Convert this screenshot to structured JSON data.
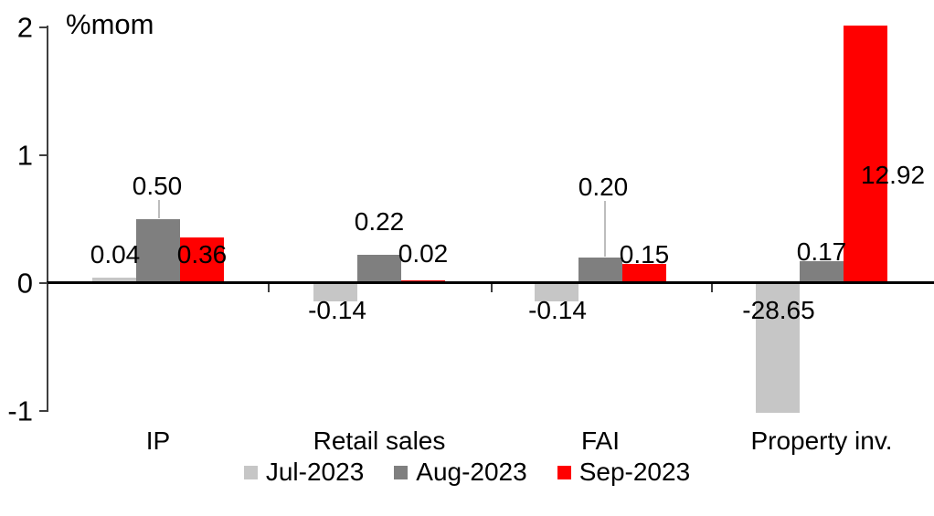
{
  "chart_data": {
    "type": "bar",
    "title": "%mom",
    "ylabel": "%mom",
    "categories": [
      "IP",
      "Retail sales",
      "FAI",
      "Property inv."
    ],
    "series": [
      {
        "name": "Jul-2023",
        "color": "#c6c6c6",
        "values": [
          0.04,
          -0.14,
          -0.14,
          -28.65
        ],
        "labels": [
          "0.04",
          "-0.14",
          "-0.14",
          "-28.65"
        ]
      },
      {
        "name": "Aug-2023",
        "color": "#7f7f7f",
        "values": [
          0.5,
          0.22,
          0.2,
          0.17
        ],
        "labels": [
          "0.50",
          "0.22",
          "0.20",
          "0.17"
        ]
      },
      {
        "name": "Sep-2023",
        "color": "#ff0000",
        "values": [
          0.36,
          0.02,
          0.15,
          12.92
        ],
        "labels": [
          "0.36",
          "0.02",
          "0.15",
          "12.92"
        ]
      }
    ],
    "ylim": [
      -1,
      2
    ],
    "yticks": [
      2,
      1,
      0,
      -1
    ],
    "grid": false,
    "legend_position": "bottom",
    "axis_color": "#000000",
    "leader_line_color": "#bdbdbd"
  }
}
